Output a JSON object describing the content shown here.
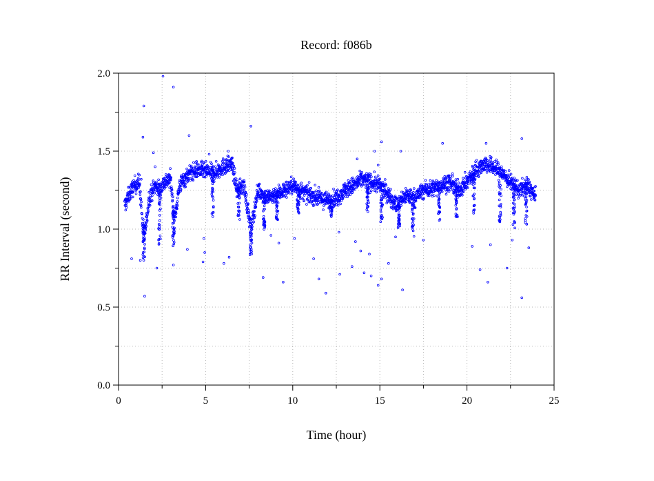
{
  "chart_data": {
    "type": "scatter",
    "title": "Record:  f086b",
    "xlabel": "Time (hour)",
    "ylabel": "RR Interval (second)",
    "xlim": [
      0,
      25
    ],
    "ylim": [
      0.0,
      2.0
    ],
    "xticks": [
      0,
      5,
      10,
      15,
      20,
      25
    ],
    "xtick_labels": [
      "0",
      "5",
      "10",
      "15",
      "20",
      "25"
    ],
    "yticks": [
      0.0,
      0.5,
      1.0,
      1.5,
      2.0
    ],
    "ytick_labels": [
      "0.0",
      "0.5",
      "1.0",
      "1.5",
      "2.0"
    ],
    "grid": true,
    "marker": "hollow-circle",
    "color": "#0000ff",
    "series": [
      {
        "trend": [
          [
            0.35,
            1.15
          ],
          [
            0.6,
            1.22
          ],
          [
            0.9,
            1.28
          ],
          [
            1.2,
            1.3
          ],
          [
            1.4,
            1.0
          ],
          [
            1.55,
            1.0
          ],
          [
            1.75,
            1.2
          ],
          [
            2.1,
            1.28
          ],
          [
            2.4,
            1.25
          ],
          [
            2.6,
            1.3
          ],
          [
            3.0,
            1.32
          ],
          [
            3.2,
            1.05
          ],
          [
            3.5,
            1.28
          ],
          [
            4.0,
            1.35
          ],
          [
            4.5,
            1.38
          ],
          [
            5.0,
            1.37
          ],
          [
            5.5,
            1.36
          ],
          [
            6.0,
            1.4
          ],
          [
            6.5,
            1.42
          ],
          [
            6.8,
            1.25
          ],
          [
            7.2,
            1.28
          ],
          [
            7.6,
            1.0
          ],
          [
            8.0,
            1.25
          ],
          [
            8.5,
            1.2
          ],
          [
            9.0,
            1.22
          ],
          [
            9.5,
            1.25
          ],
          [
            10.0,
            1.28
          ],
          [
            10.5,
            1.24
          ],
          [
            11.0,
            1.22
          ],
          [
            11.5,
            1.2
          ],
          [
            12.0,
            1.18
          ],
          [
            12.5,
            1.2
          ],
          [
            13.0,
            1.25
          ],
          [
            13.5,
            1.28
          ],
          [
            14.0,
            1.32
          ],
          [
            14.5,
            1.3
          ],
          [
            15.0,
            1.28
          ],
          [
            15.5,
            1.22
          ],
          [
            16.0,
            1.15
          ],
          [
            16.5,
            1.22
          ],
          [
            17.0,
            1.2
          ],
          [
            17.5,
            1.25
          ],
          [
            18.0,
            1.26
          ],
          [
            18.5,
            1.28
          ],
          [
            19.0,
            1.3
          ],
          [
            19.5,
            1.25
          ],
          [
            20.0,
            1.3
          ],
          [
            20.5,
            1.38
          ],
          [
            21.0,
            1.42
          ],
          [
            21.5,
            1.4
          ],
          [
            22.0,
            1.36
          ],
          [
            22.5,
            1.3
          ],
          [
            23.0,
            1.25
          ],
          [
            23.5,
            1.28
          ],
          [
            23.95,
            1.2
          ]
        ],
        "spread": 0.07,
        "dips": [
          [
            1.45,
            0.8
          ],
          [
            2.35,
            0.9
          ],
          [
            3.15,
            0.88
          ],
          [
            5.4,
            1.05
          ],
          [
            6.9,
            1.05
          ],
          [
            7.6,
            0.82
          ],
          [
            8.35,
            1.0
          ],
          [
            9.1,
            1.05
          ],
          [
            10.3,
            1.1
          ],
          [
            12.2,
            1.08
          ],
          [
            14.3,
            1.1
          ],
          [
            15.1,
            1.05
          ],
          [
            16.1,
            1.0
          ],
          [
            16.9,
            0.96
          ],
          [
            18.4,
            1.05
          ],
          [
            19.4,
            1.08
          ],
          [
            20.4,
            1.1
          ],
          [
            21.9,
            1.05
          ],
          [
            22.7,
            1.0
          ],
          [
            23.4,
            1.03
          ]
        ],
        "outliers": [
          [
            2.55,
            1.98
          ],
          [
            3.15,
            1.91
          ],
          [
            1.45,
            1.79
          ],
          [
            7.6,
            1.66
          ],
          [
            1.4,
            1.59
          ],
          [
            4.05,
            1.6
          ],
          [
            15.1,
            1.56
          ],
          [
            18.6,
            1.55
          ],
          [
            21.1,
            1.55
          ],
          [
            23.15,
            1.58
          ],
          [
            2.0,
            1.49
          ],
          [
            14.7,
            1.5
          ],
          [
            16.2,
            1.5
          ],
          [
            1.5,
            0.57
          ],
          [
            11.9,
            0.59
          ],
          [
            23.15,
            0.56
          ],
          [
            11.5,
            0.68
          ],
          [
            9.45,
            0.66
          ],
          [
            21.2,
            0.66
          ],
          [
            14.9,
            0.64
          ],
          [
            15.1,
            0.68
          ],
          [
            8.3,
            0.69
          ],
          [
            12.7,
            0.71
          ],
          [
            14.5,
            0.7
          ],
          [
            16.3,
            0.61
          ],
          [
            13.4,
            0.76
          ],
          [
            14.1,
            0.72
          ],
          [
            15.5,
            0.78
          ],
          [
            1.25,
            0.8
          ],
          [
            0.75,
            0.81
          ],
          [
            4.85,
            0.79
          ],
          [
            6.05,
            0.78
          ],
          [
            2.2,
            0.75
          ],
          [
            3.15,
            0.77
          ],
          [
            20.75,
            0.74
          ],
          [
            22.3,
            0.75
          ],
          [
            4.95,
            0.85
          ],
          [
            3.95,
            0.87
          ],
          [
            6.35,
            0.82
          ],
          [
            11.2,
            0.81
          ],
          [
            13.9,
            0.86
          ],
          [
            14.4,
            0.84
          ],
          [
            20.3,
            0.89
          ],
          [
            21.35,
            0.9
          ],
          [
            23.55,
            0.88
          ],
          [
            22.6,
            0.93
          ],
          [
            17.5,
            0.93
          ],
          [
            15.9,
            0.95
          ],
          [
            12.65,
            0.98
          ],
          [
            13.6,
            0.92
          ],
          [
            9.2,
            0.91
          ],
          [
            8.75,
            0.96
          ],
          [
            10.1,
            0.94
          ],
          [
            4.9,
            0.94
          ],
          [
            1.3,
            1.32
          ],
          [
            2.1,
            1.4
          ],
          [
            5.2,
            1.48
          ],
          [
            6.3,
            1.5
          ],
          [
            14.9,
            1.41
          ],
          [
            13.7,
            1.45
          ]
        ]
      }
    ]
  }
}
